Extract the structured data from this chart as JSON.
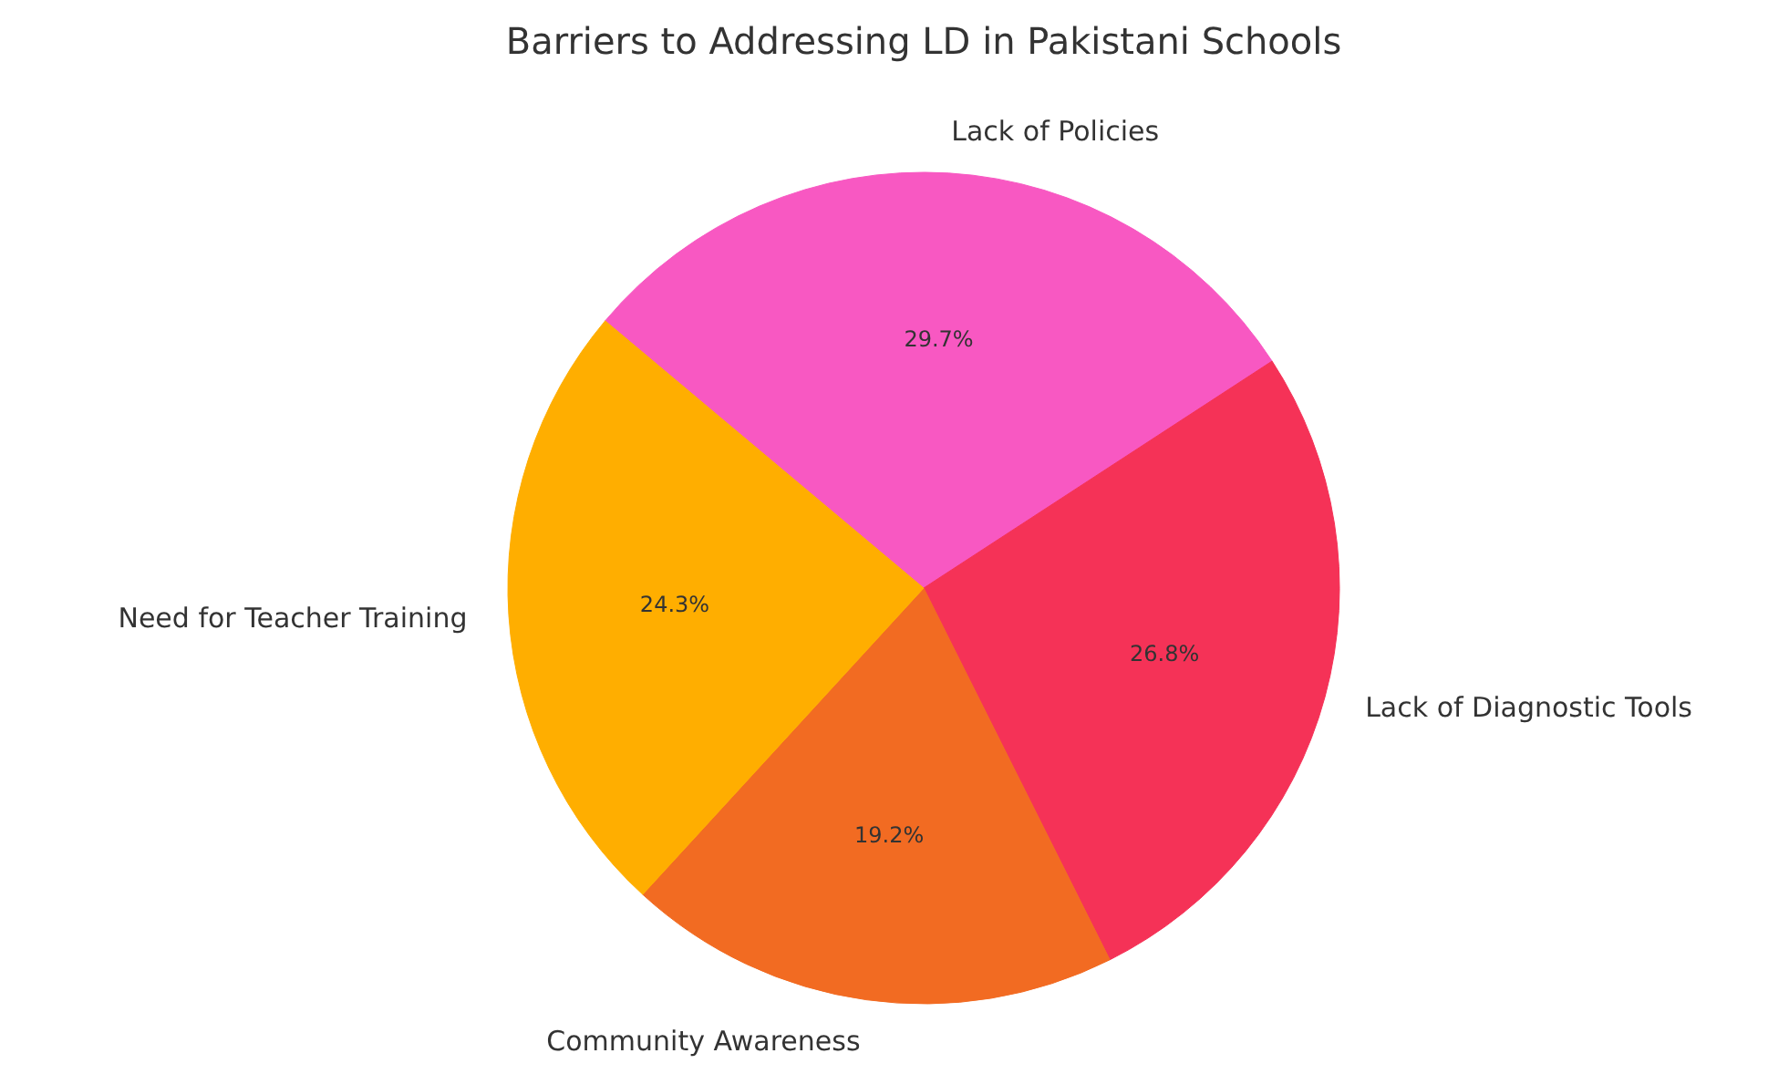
{
  "chart_data": {
    "type": "pie",
    "title": "Barriers to Addressing LD in Pakistani Schools",
    "categories": [
      "Lack of Policies",
      "Lack of Diagnostic Tools",
      "Community Awareness",
      "Need for Teacher Training"
    ],
    "values": [
      29.7,
      26.8,
      19.2,
      24.3
    ],
    "value_labels": [
      "29.7%",
      "26.8%",
      "19.2%",
      "24.3%"
    ],
    "colors": [
      "#f858c2",
      "#f53257",
      "#f26b22",
      "#ffae00"
    ]
  }
}
